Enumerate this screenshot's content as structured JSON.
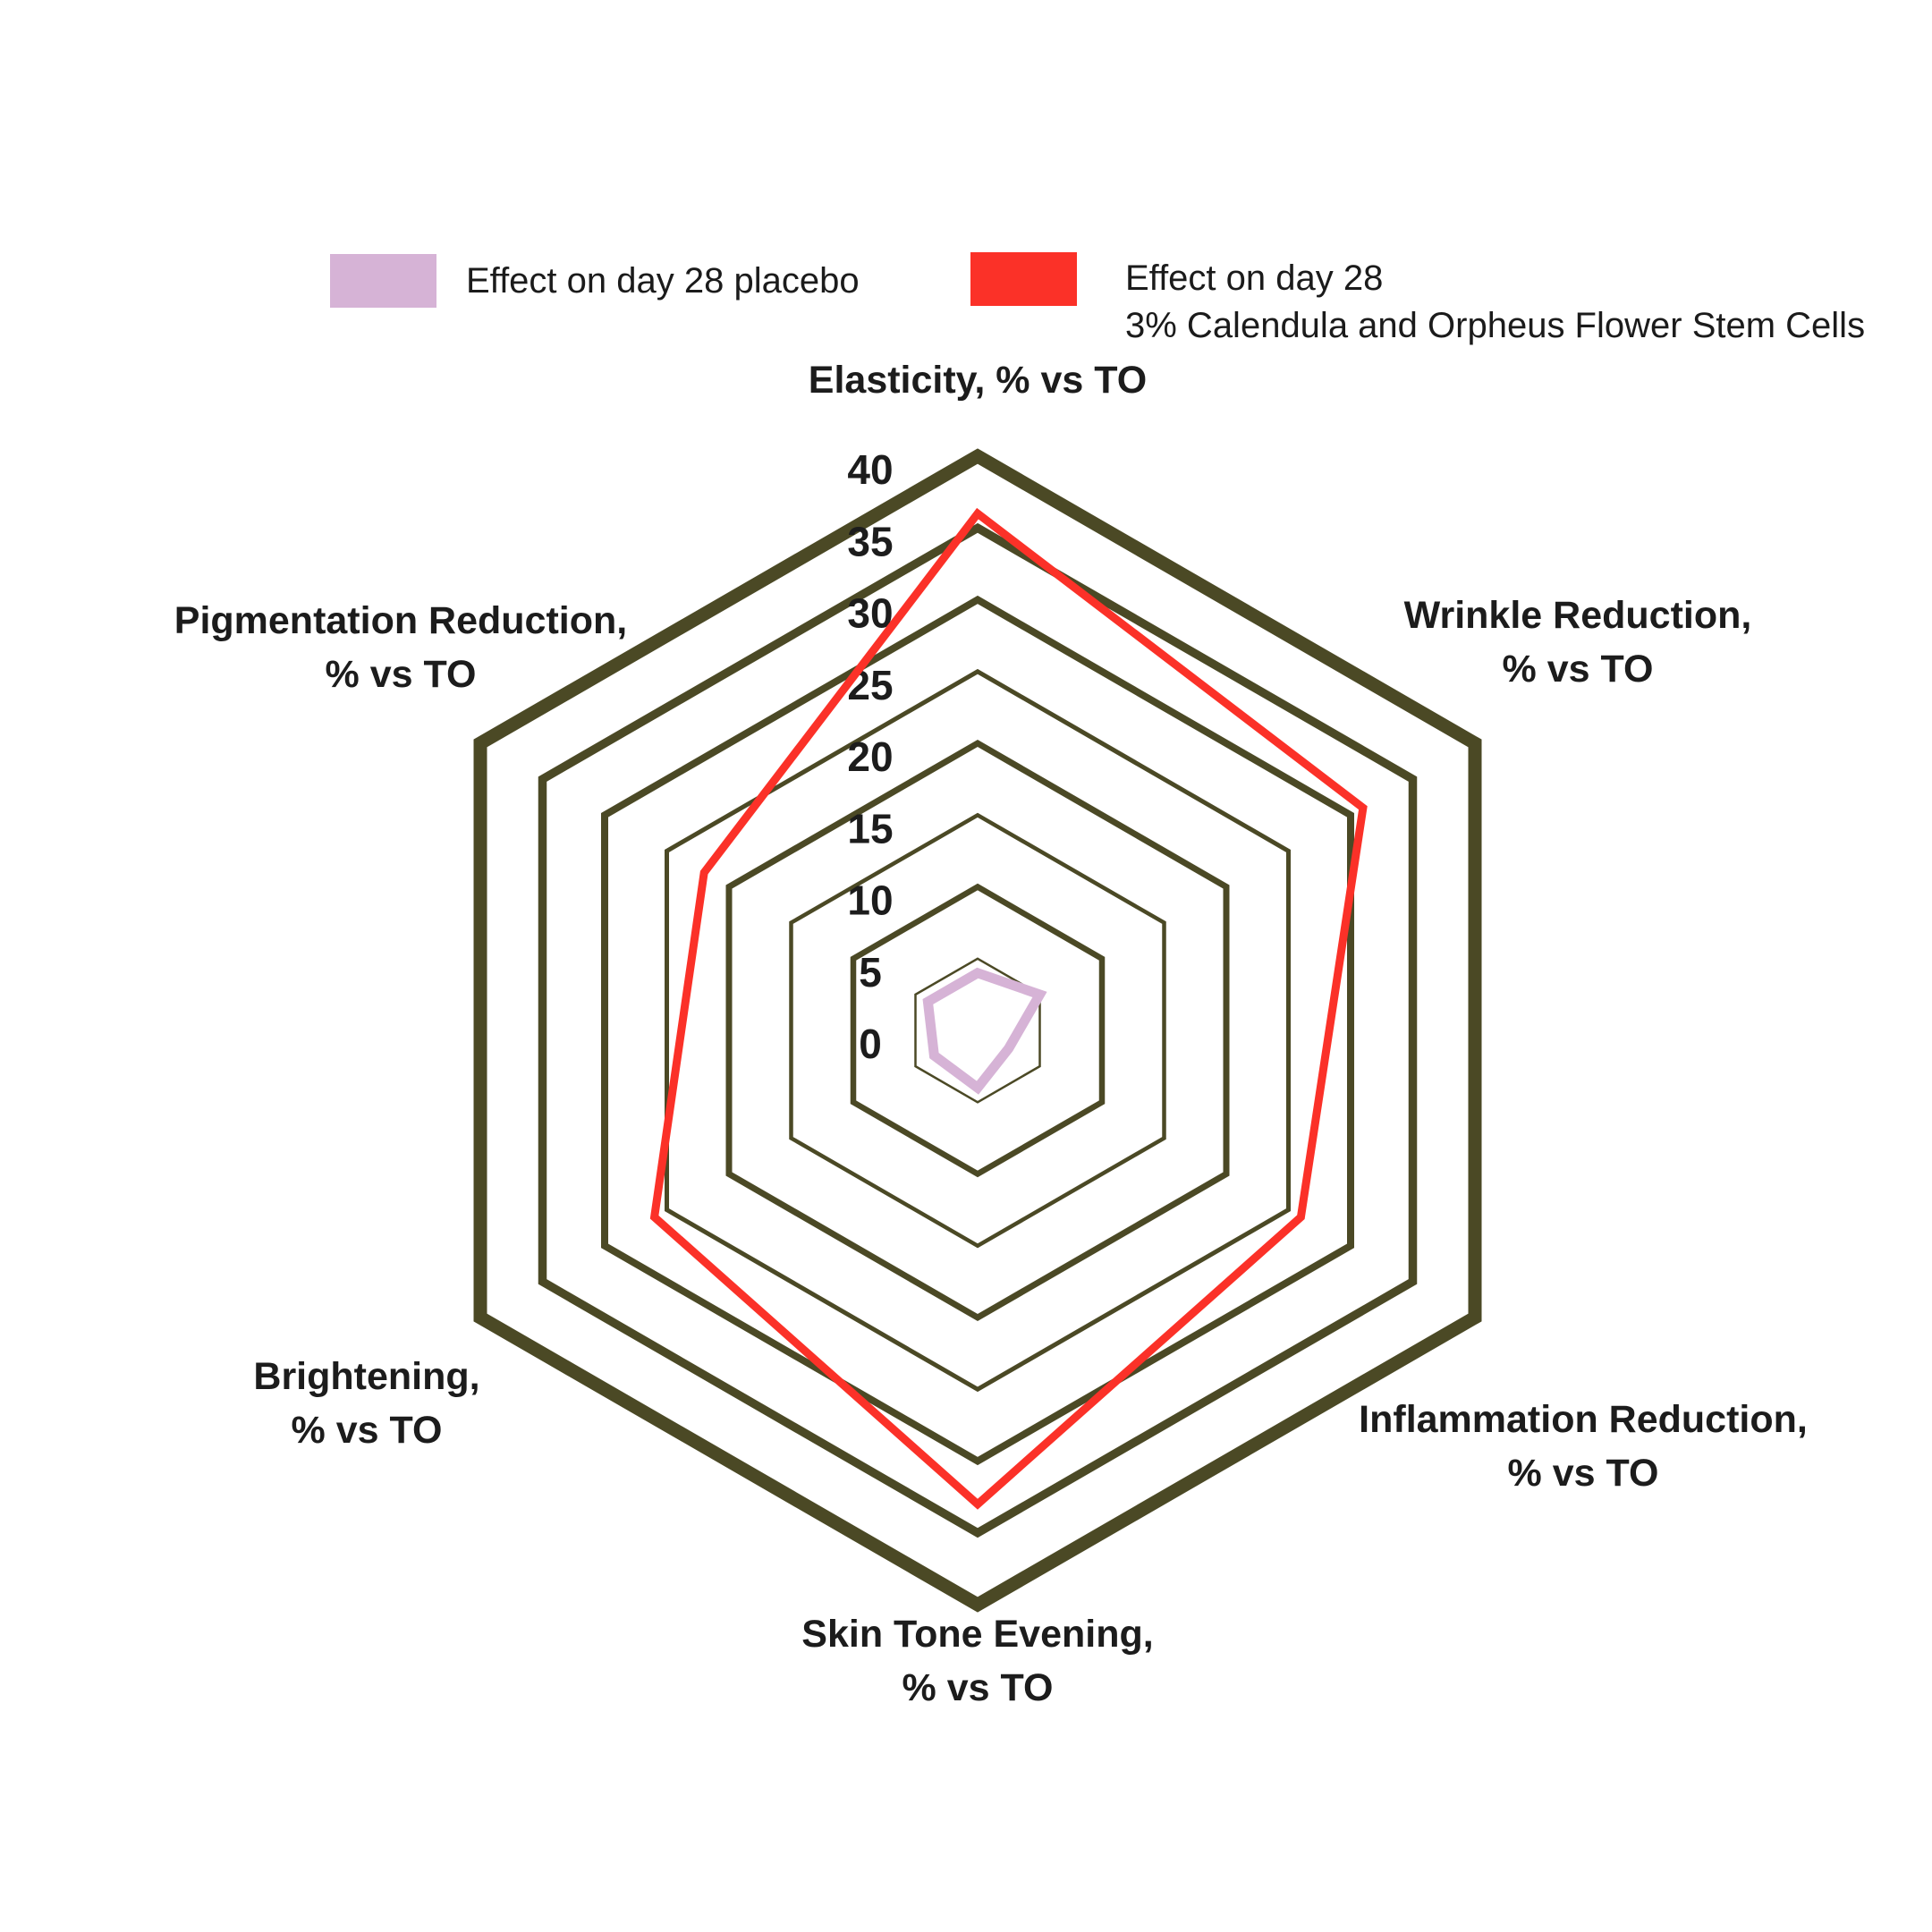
{
  "page": {
    "background": "#ffffff"
  },
  "legend": {
    "items": [
      {
        "swatch_color": "#d6b3d6",
        "lines": [
          "Effect on day 28 placebo"
        ]
      },
      {
        "swatch_color": "#fb3128",
        "lines": [
          "Effect on day 28",
          "3% Calendula and Orpheus Flower Stem Cells"
        ]
      }
    ]
  },
  "chart_data": {
    "type": "radar",
    "grid_shape": "hexagon",
    "grid_rings": [
      5,
      10,
      15,
      20,
      25,
      30,
      35,
      40
    ],
    "grid_color": "#4b4925",
    "text_color": "#1c1c1c",
    "scale": {
      "min": 0,
      "max": 40,
      "step": 5,
      "tick_labels": [
        "40",
        "35",
        "30",
        "25",
        "20",
        "15",
        "10",
        "5",
        "0"
      ],
      "ticks": [
        40,
        35,
        30,
        25,
        20,
        15,
        10,
        5,
        0
      ]
    },
    "axes": [
      {
        "slug": "elasticity",
        "lines": [
          "Elasticity, % vs TO"
        ]
      },
      {
        "slug": "wrinkle-reduction",
        "lines": [
          "Wrinkle Reduction,",
          "% vs TO"
        ]
      },
      {
        "slug": "inflammation-reduction",
        "lines": [
          "Inflammation Reduction,",
          "% vs TO"
        ]
      },
      {
        "slug": "skin-tone-evening",
        "lines": [
          "Skin Tone Evening,",
          "% vs TO"
        ]
      },
      {
        "slug": "brightening",
        "lines": [
          "Brightening,",
          "% vs TO"
        ]
      },
      {
        "slug": "pigmentation-reduction",
        "lines": [
          "Pigmentation Reduction,",
          "% vs TO"
        ]
      }
    ],
    "series": [
      {
        "name": "Effect on day 28 placebo",
        "color": "#d6b3d6",
        "values": [
          4,
          5,
          2.5,
          4,
          3.5,
          4
        ]
      },
      {
        "name": "Effect on day 28 3% Calendula and Orpheus Flower Stem Cells",
        "color": "#fb3128",
        "values": [
          36,
          31,
          26,
          33,
          26,
          22
        ]
      }
    ]
  }
}
